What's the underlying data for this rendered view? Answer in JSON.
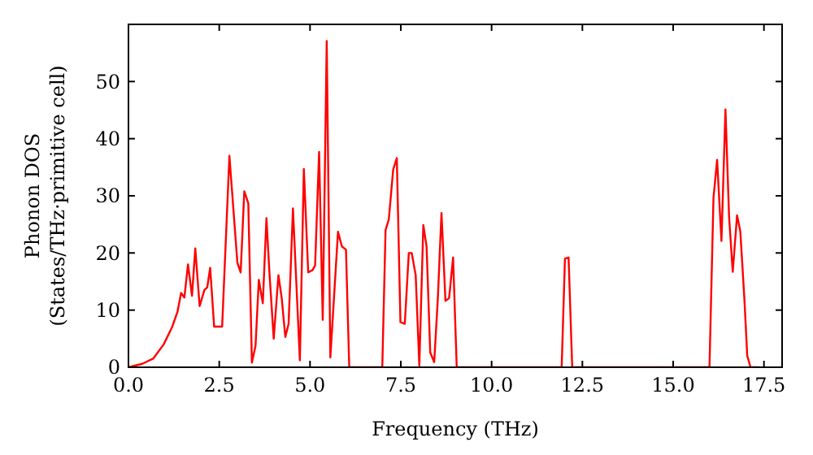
{
  "chart_data": {
    "type": "line",
    "xlabel": "Frequency (THz)",
    "ylabel": "Phonon DOS\n(States/THz·primitive cell)",
    "xlim": [
      0,
      18
    ],
    "ylim": [
      0,
      60
    ],
    "xticks": [
      {
        "value": 0,
        "label": "0.0"
      },
      {
        "value": 2.5,
        "label": "2.5"
      },
      {
        "value": 5,
        "label": "5.0"
      },
      {
        "value": 7.5,
        "label": "7.5"
      },
      {
        "value": 10,
        "label": "10.0"
      },
      {
        "value": 12.5,
        "label": "12.5"
      },
      {
        "value": 15,
        "label": "15.0"
      },
      {
        "value": 17.5,
        "label": "17.5"
      }
    ],
    "yticks": [
      0,
      10,
      20,
      30,
      40,
      50
    ],
    "grid": false,
    "line_style": "solid",
    "series": [
      {
        "color": "#ff0000",
        "x": [
          0,
          0.38,
          0.68,
          0.97,
          1.2,
          1.35,
          1.45,
          1.54,
          1.64,
          1.75,
          1.84,
          1.96,
          2.09,
          2.17,
          2.25,
          2.36,
          2.58,
          2.78,
          3.0,
          3.09,
          3.19,
          3.3,
          3.4,
          3.5,
          3.59,
          3.7,
          3.8,
          3.88,
          4.0,
          4.13,
          4.22,
          4.32,
          4.41,
          4.53,
          4.72,
          4.83,
          4.95,
          5.07,
          5.14,
          5.25,
          5.35,
          5.46,
          5.56,
          5.77,
          5.88,
          5.99,
          6.08,
          6.99,
          7.08,
          7.17,
          7.29,
          7.39,
          7.49,
          7.61,
          7.72,
          7.8,
          7.91,
          8.01,
          8.12,
          8.21,
          8.31,
          8.42,
          8.52,
          8.62,
          8.73,
          8.83,
          8.94,
          9.04,
          11.93,
          12.02,
          12.12,
          12.22,
          16.0,
          16.11,
          16.21,
          16.33,
          16.44,
          16.54,
          16.64,
          16.76,
          16.85,
          16.96,
          17.04,
          17.13,
          17.35
        ],
        "values": [
          0,
          0.6,
          1.5,
          4,
          7,
          9.7,
          13,
          12.2,
          18,
          12.5,
          20.8,
          10.7,
          13.5,
          14,
          17.4,
          7.1,
          7.1,
          37,
          18.3,
          16.6,
          30.8,
          28.7,
          0.8,
          3.8,
          15.3,
          11.2,
          26.1,
          16.8,
          5,
          16.1,
          12.1,
          5.3,
          7.6,
          27.8,
          1.2,
          34.7,
          16.6,
          17,
          17.8,
          37.7,
          8.3,
          57.1,
          1.7,
          23.7,
          21.1,
          20.6,
          0,
          0,
          24,
          25.9,
          34.6,
          36.6,
          7.9,
          7.6,
          20,
          20,
          16.1,
          0.3,
          24.9,
          21.1,
          2.6,
          0.9,
          12.1,
          27,
          11.6,
          12.1,
          19.2,
          0,
          0,
          19,
          19.2,
          0,
          0,
          29.6,
          36.3,
          22.1,
          45.1,
          26.3,
          16.7,
          26.6,
          23.7,
          12.1,
          2,
          0,
          0
        ]
      }
    ]
  }
}
